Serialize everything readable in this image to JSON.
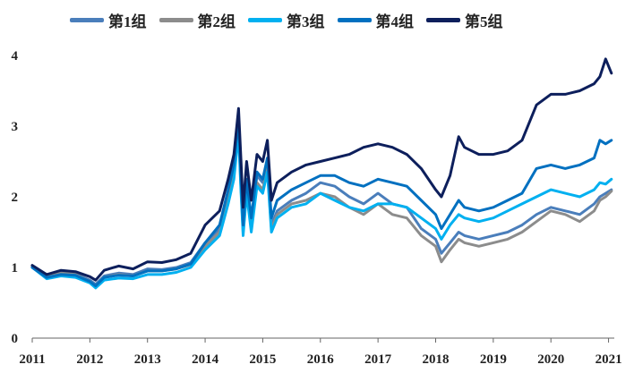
{
  "chart_data": {
    "type": "line",
    "title": "",
    "xlabel": "",
    "ylabel": "",
    "xlim": [
      2011,
      2021.1
    ],
    "ylim": [
      0,
      4
    ],
    "x_ticks": [
      "2011",
      "2012",
      "2013",
      "2014",
      "2015",
      "2016",
      "2017",
      "2018",
      "2019",
      "2020",
      "2021"
    ],
    "y_ticks": [
      "0",
      "1",
      "2",
      "3",
      "4"
    ],
    "grid": false,
    "legend_position": "top",
    "x": [
      2011.0,
      2011.25,
      2011.5,
      2011.75,
      2012.0,
      2012.1,
      2012.25,
      2012.5,
      2012.75,
      2013.0,
      2013.25,
      2013.5,
      2013.75,
      2014.0,
      2014.25,
      2014.4,
      2014.5,
      2014.58,
      2014.62,
      2014.66,
      2014.72,
      2014.8,
      2014.9,
      2015.0,
      2015.08,
      2015.15,
      2015.25,
      2015.5,
      2015.75,
      2016.0,
      2016.25,
      2016.5,
      2016.75,
      2017.0,
      2017.25,
      2017.5,
      2017.75,
      2018.0,
      2018.1,
      2018.25,
      2018.4,
      2018.5,
      2018.75,
      2019.0,
      2019.25,
      2019.5,
      2019.75,
      2020.0,
      2020.25,
      2020.5,
      2020.75,
      2020.85,
      2020.95,
      2021.05
    ],
    "series": [
      {
        "name": "第1组",
        "color": "#4a7ebb",
        "values": [
          1.02,
          0.88,
          0.93,
          0.91,
          0.82,
          0.76,
          0.88,
          0.92,
          0.9,
          0.98,
          0.97,
          1.0,
          1.07,
          1.35,
          1.55,
          2.05,
          2.4,
          3.05,
          2.25,
          1.55,
          2.2,
          1.65,
          2.3,
          2.2,
          2.5,
          1.6,
          1.8,
          1.95,
          2.05,
          2.2,
          2.15,
          2.0,
          1.9,
          2.05,
          1.9,
          1.85,
          1.55,
          1.4,
          1.2,
          1.35,
          1.5,
          1.45,
          1.4,
          1.45,
          1.5,
          1.6,
          1.75,
          1.85,
          1.8,
          1.75,
          1.9,
          2.0,
          2.05,
          2.1
        ]
      },
      {
        "name": "第2组",
        "color": "#8c8c8c",
        "values": [
          1.0,
          0.87,
          0.92,
          0.9,
          0.8,
          0.74,
          0.86,
          0.9,
          0.88,
          0.95,
          0.95,
          0.98,
          1.04,
          1.3,
          1.5,
          1.95,
          2.3,
          2.95,
          2.15,
          1.5,
          2.1,
          1.55,
          2.2,
          2.1,
          2.4,
          1.55,
          1.75,
          1.9,
          1.95,
          2.05,
          2.0,
          1.85,
          1.75,
          1.9,
          1.75,
          1.7,
          1.45,
          1.3,
          1.08,
          1.25,
          1.4,
          1.35,
          1.3,
          1.35,
          1.4,
          1.5,
          1.65,
          1.8,
          1.75,
          1.65,
          1.8,
          1.95,
          2.0,
          2.08
        ]
      },
      {
        "name": "第3组",
        "color": "#00b0f0",
        "values": [
          1.0,
          0.84,
          0.88,
          0.86,
          0.78,
          0.71,
          0.82,
          0.85,
          0.84,
          0.9,
          0.9,
          0.93,
          1.0,
          1.25,
          1.45,
          1.9,
          2.25,
          2.9,
          2.1,
          1.45,
          2.05,
          1.5,
          2.15,
          2.05,
          2.35,
          1.5,
          1.7,
          1.85,
          1.9,
          2.05,
          1.95,
          1.85,
          1.8,
          1.9,
          1.9,
          1.85,
          1.7,
          1.55,
          1.4,
          1.6,
          1.75,
          1.7,
          1.65,
          1.7,
          1.8,
          1.9,
          2.0,
          2.1,
          2.05,
          2.0,
          2.1,
          2.2,
          2.18,
          2.25
        ]
      },
      {
        "name": "第4组",
        "color": "#0070c0",
        "values": [
          1.0,
          0.86,
          0.9,
          0.89,
          0.8,
          0.74,
          0.86,
          0.89,
          0.88,
          0.95,
          0.95,
          0.98,
          1.05,
          1.35,
          1.6,
          2.1,
          2.45,
          3.1,
          2.3,
          1.6,
          2.25,
          1.7,
          2.35,
          2.25,
          2.55,
          1.7,
          1.95,
          2.1,
          2.2,
          2.3,
          2.3,
          2.2,
          2.15,
          2.25,
          2.2,
          2.15,
          1.95,
          1.75,
          1.55,
          1.75,
          1.95,
          1.85,
          1.8,
          1.85,
          1.95,
          2.05,
          2.4,
          2.45,
          2.4,
          2.45,
          2.55,
          2.8,
          2.75,
          2.8
        ]
      },
      {
        "name": "第5组",
        "color": "#0d1f5c",
        "values": [
          1.03,
          0.9,
          0.96,
          0.94,
          0.87,
          0.82,
          0.96,
          1.02,
          0.98,
          1.08,
          1.07,
          1.11,
          1.2,
          1.6,
          1.8,
          2.25,
          2.6,
          3.25,
          2.55,
          1.85,
          2.5,
          1.95,
          2.6,
          2.5,
          2.8,
          1.95,
          2.2,
          2.35,
          2.45,
          2.5,
          2.55,
          2.6,
          2.7,
          2.75,
          2.7,
          2.6,
          2.4,
          2.1,
          2.0,
          2.3,
          2.85,
          2.7,
          2.6,
          2.6,
          2.65,
          2.8,
          3.3,
          3.45,
          3.45,
          3.5,
          3.6,
          3.7,
          3.95,
          3.75
        ]
      }
    ]
  }
}
